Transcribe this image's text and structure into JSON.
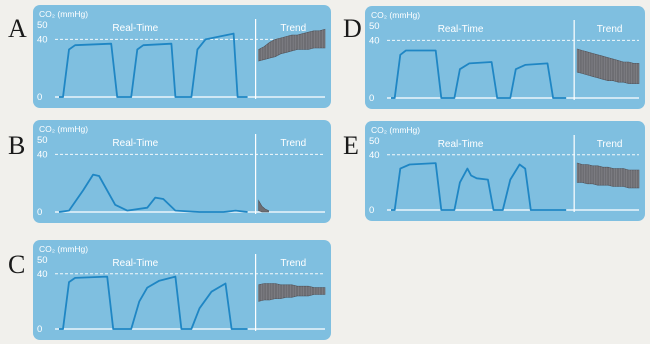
{
  "chart_data": [
    {
      "panel": "A",
      "type": "line",
      "ylabel": "CO₂ (mmHg)",
      "realtime_label": "Real-Time",
      "trend_label": "Trend",
      "yticks": [
        50,
        40,
        0
      ],
      "ylim": [
        0,
        50
      ],
      "reference_line": 40,
      "waveform": [
        [
          0,
          0
        ],
        [
          2,
          0
        ],
        [
          5,
          33
        ],
        [
          8,
          36
        ],
        [
          26,
          37
        ],
        [
          29,
          0
        ],
        [
          36,
          0
        ],
        [
          39,
          33
        ],
        [
          42,
          36
        ],
        [
          56,
          37
        ],
        [
          58,
          0
        ],
        [
          66,
          0
        ],
        [
          69,
          33
        ],
        [
          73,
          40
        ],
        [
          87,
          44
        ],
        [
          89,
          0
        ],
        [
          94,
          0
        ]
      ],
      "trend": {
        "low": [
          25,
          26,
          27,
          28,
          30,
          31,
          32,
          33,
          33,
          33,
          34,
          34,
          34
        ],
        "high": [
          33,
          35,
          38,
          40,
          41,
          42,
          43,
          43,
          44,
          45,
          46,
          46,
          47
        ]
      }
    },
    {
      "panel": "B",
      "type": "line",
      "ylabel": "CO₂ (mmHg)",
      "realtime_label": "Real-Time",
      "trend_label": "Trend",
      "yticks": [
        50,
        40,
        0
      ],
      "ylim": [
        0,
        50
      ],
      "reference_line": 40,
      "waveform": [
        [
          0,
          0
        ],
        [
          5,
          1
        ],
        [
          12,
          15
        ],
        [
          17,
          26
        ],
        [
          20,
          25
        ],
        [
          28,
          5
        ],
        [
          34,
          1
        ],
        [
          44,
          3
        ],
        [
          48,
          10
        ],
        [
          52,
          9
        ],
        [
          58,
          1
        ],
        [
          70,
          0
        ],
        [
          82,
          0
        ],
        [
          88,
          1
        ],
        [
          94,
          0
        ]
      ],
      "trend": {
        "low": [
          1,
          0,
          0,
          0
        ],
        "high": [
          8,
          4,
          2,
          1
        ]
      }
    },
    {
      "panel": "C",
      "type": "line",
      "ylabel": "CO₂ (mmHg)",
      "realtime_label": "Real-Time",
      "trend_label": "Trend",
      "yticks": [
        50,
        40,
        0
      ],
      "ylim": [
        0,
        50
      ],
      "reference_line": 40,
      "waveform": [
        [
          0,
          0
        ],
        [
          2,
          0
        ],
        [
          5,
          34
        ],
        [
          8,
          37
        ],
        [
          24,
          38
        ],
        [
          27,
          0
        ],
        [
          36,
          0
        ],
        [
          40,
          20
        ],
        [
          44,
          30
        ],
        [
          50,
          35
        ],
        [
          58,
          38
        ],
        [
          61,
          0
        ],
        [
          66,
          0
        ],
        [
          70,
          15
        ],
        [
          76,
          27
        ],
        [
          83,
          33
        ],
        [
          86,
          0
        ],
        [
          94,
          0
        ]
      ],
      "trend": {
        "low": [
          20,
          21,
          21,
          22,
          22,
          23,
          23,
          24,
          24,
          24,
          25,
          25,
          25
        ],
        "high": [
          32,
          33,
          33,
          33,
          32,
          32,
          32,
          31,
          31,
          31,
          30,
          30,
          30
        ]
      }
    },
    {
      "panel": "D",
      "type": "line",
      "ylabel": "CO₂ (mmHg)",
      "realtime_label": "Real-Time",
      "trend_label": "Trend",
      "yticks": [
        50,
        40,
        0
      ],
      "ylim": [
        0,
        50
      ],
      "reference_line": 40,
      "waveform": [
        [
          0,
          0
        ],
        [
          2,
          0
        ],
        [
          5,
          30
        ],
        [
          8,
          33
        ],
        [
          24,
          33
        ],
        [
          27,
          0
        ],
        [
          34,
          0
        ],
        [
          37,
          20
        ],
        [
          42,
          24
        ],
        [
          54,
          25
        ],
        [
          57,
          0
        ],
        [
          64,
          0
        ],
        [
          67,
          20
        ],
        [
          72,
          23
        ],
        [
          84,
          24
        ],
        [
          87,
          0
        ],
        [
          94,
          0
        ]
      ],
      "trend": {
        "low": [
          18,
          17,
          16,
          15,
          14,
          13,
          12,
          12,
          11,
          11,
          10,
          10,
          10
        ],
        "high": [
          34,
          33,
          32,
          31,
          30,
          29,
          28,
          27,
          26,
          25,
          25,
          24,
          24
        ]
      }
    },
    {
      "panel": "E",
      "type": "line",
      "ylabel": "CO₂ (mmHg)",
      "realtime_label": "Real-Time",
      "trend_label": "Trend",
      "yticks": [
        50,
        40,
        0
      ],
      "ylim": [
        0,
        50
      ],
      "reference_line": 40,
      "waveform": [
        [
          0,
          0
        ],
        [
          2,
          0
        ],
        [
          5,
          30
        ],
        [
          10,
          33
        ],
        [
          24,
          34
        ],
        [
          27,
          0
        ],
        [
          34,
          0
        ],
        [
          37,
          20
        ],
        [
          41,
          30
        ],
        [
          43,
          25
        ],
        [
          46,
          23
        ],
        [
          52,
          22
        ],
        [
          55,
          0
        ],
        [
          60,
          0
        ],
        [
          64,
          22
        ],
        [
          69,
          33
        ],
        [
          72,
          30
        ],
        [
          75,
          0
        ],
        [
          94,
          0
        ]
      ],
      "trend": {
        "low": [
          20,
          20,
          19,
          19,
          18,
          18,
          18,
          17,
          17,
          17,
          16,
          16,
          16
        ],
        "high": [
          34,
          33,
          33,
          32,
          32,
          31,
          31,
          30,
          30,
          30,
          29,
          29,
          29
        ]
      }
    }
  ]
}
